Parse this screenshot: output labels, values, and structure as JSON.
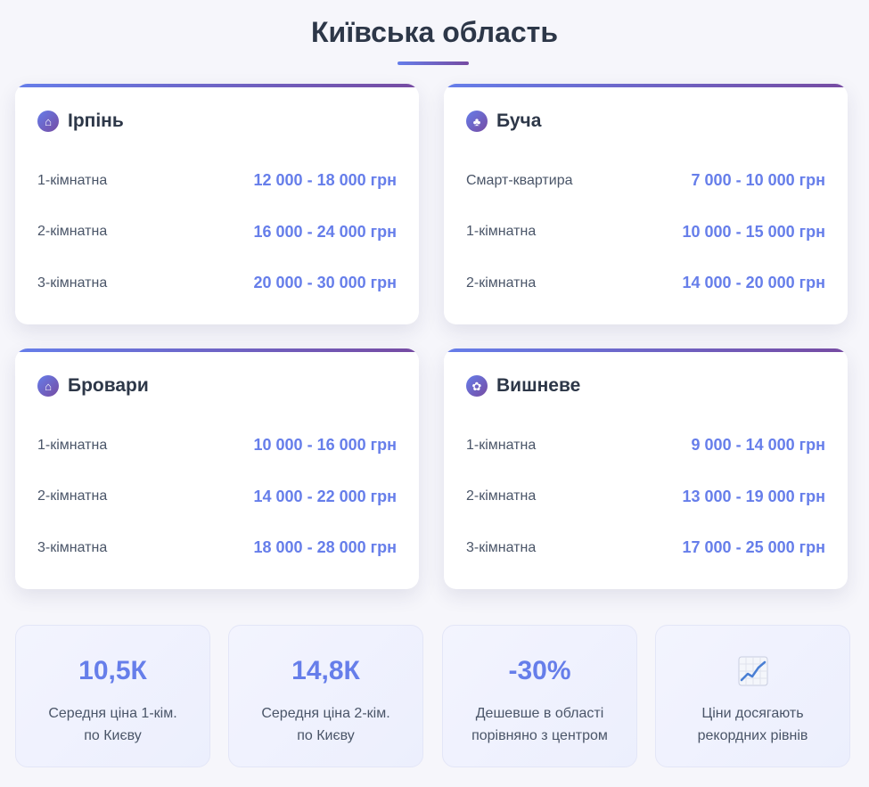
{
  "header": {
    "title": "Київська область"
  },
  "colors": {
    "accent": "#667eea",
    "accent_end": "#764ba2",
    "text_dark": "#2d3748",
    "text_muted": "#4a5568"
  },
  "cities": [
    {
      "name": "Ірпінь",
      "icon": "house-icon",
      "icon_glyph": "⌂",
      "rows": [
        {
          "label": "1-кімнатна",
          "price": "12 000 - 18 000 грн"
        },
        {
          "label": "2-кімнатна",
          "price": "16 000 - 24 000 грн"
        },
        {
          "label": "3-кімнатна",
          "price": "20 000 - 30 000 грн"
        }
      ]
    },
    {
      "name": "Буча",
      "icon": "tree-icon",
      "icon_glyph": "♣",
      "rows": [
        {
          "label": "Смарт-квартира",
          "price": "7 000 - 10 000 грн"
        },
        {
          "label": "1-кімнатна",
          "price": "10 000 - 15 000 грн"
        },
        {
          "label": "2-кімнатна",
          "price": "14 000 - 20 000 грн"
        }
      ]
    },
    {
      "name": "Бровари",
      "icon": "house-icon",
      "icon_glyph": "⌂",
      "rows": [
        {
          "label": "1-кімнатна",
          "price": "10 000 - 16 000 грн"
        },
        {
          "label": "2-кімнатна",
          "price": "14 000 - 22 000 грн"
        },
        {
          "label": "3-кімнатна",
          "price": "18 000 - 28 000 грн"
        }
      ]
    },
    {
      "name": "Вишневе",
      "icon": "flower-icon",
      "icon_glyph": "✿",
      "rows": [
        {
          "label": "1-кімнатна",
          "price": "9 000 - 14 000 грн"
        },
        {
          "label": "2-кімнатна",
          "price": "13 000 - 19 000 грн"
        },
        {
          "label": "3-кімнатна",
          "price": "17 000 - 25 000 грн"
        }
      ]
    }
  ],
  "stats": [
    {
      "value": "10,5К",
      "desc_line1": "Середня ціна 1-кім.",
      "desc_line2": "по Києву"
    },
    {
      "value": "14,8К",
      "desc_line1": "Середня ціна 2-кім.",
      "desc_line2": "по Києву"
    },
    {
      "value": "-30%",
      "desc_line1": "Дешевше в області",
      "desc_line2": "порівняно з центром"
    },
    {
      "icon": "chart-increasing-icon",
      "desc_line1": "Ціни досягають",
      "desc_line2": "рекордних рівнів"
    }
  ]
}
